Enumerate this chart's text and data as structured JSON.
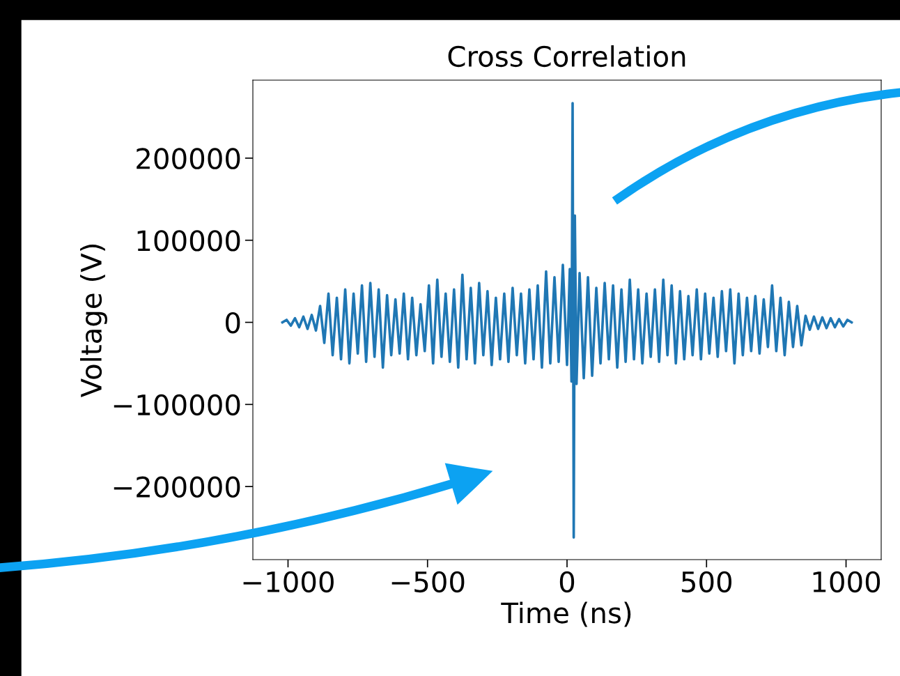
{
  "chart_data": {
    "type": "line",
    "title": "Cross Correlation",
    "xlabel": "Time (ns)",
    "ylabel": "Voltage (V)",
    "xlim": [
      -1126,
      1126
    ],
    "ylim": [
      -289000,
      295000
    ],
    "xticks": [
      {
        "value": -1000,
        "label": "−1000"
      },
      {
        "value": -500,
        "label": "−500"
      },
      0,
      500,
      1000
    ],
    "yticks": [
      {
        "value": -200000,
        "label": "−200000"
      },
      {
        "value": -100000,
        "label": "−100000"
      },
      0,
      100000,
      200000
    ],
    "grid": false,
    "series": [
      {
        "color": "#1f77b4",
        "x": [
          -1020,
          -1005,
          -990,
          -975,
          -960,
          -945,
          -930,
          -915,
          -900,
          -885,
          -870,
          -855,
          -840,
          -825,
          -810,
          -795,
          -780,
          -765,
          -750,
          -735,
          -720,
          -705,
          -690,
          -675,
          -660,
          -645,
          -630,
          -615,
          -600,
          -585,
          -570,
          -555,
          -540,
          -525,
          -510,
          -495,
          -480,
          -465,
          -450,
          -435,
          -420,
          -405,
          -390,
          -375,
          -360,
          -345,
          -330,
          -315,
          -300,
          -285,
          -270,
          -255,
          -240,
          -225,
          -210,
          -195,
          -180,
          -165,
          -150,
          -135,
          -120,
          -105,
          -90,
          -75,
          -60,
          -45,
          -30,
          -15,
          0,
          10,
          16,
          20,
          24,
          28,
          34,
          45,
          60,
          75,
          90,
          105,
          120,
          135,
          150,
          165,
          180,
          195,
          210,
          225,
          240,
          255,
          270,
          285,
          300,
          315,
          330,
          345,
          360,
          375,
          390,
          405,
          420,
          435,
          450,
          465,
          480,
          495,
          510,
          525,
          540,
          555,
          570,
          585,
          600,
          615,
          630,
          645,
          660,
          675,
          690,
          705,
          720,
          735,
          750,
          765,
          780,
          795,
          810,
          825,
          840,
          855,
          870,
          885,
          900,
          915,
          930,
          945,
          960,
          975,
          990,
          1005,
          1020
        ],
        "values": [
          0,
          3000,
          -4000,
          5000,
          -6000,
          7000,
          -8000,
          9000,
          -10000,
          20000,
          -25000,
          35000,
          -40000,
          30000,
          -45000,
          40000,
          -50000,
          35000,
          -38000,
          45000,
          -48000,
          48000,
          -42000,
          40000,
          -55000,
          33000,
          -40000,
          28000,
          -38000,
          35000,
          -45000,
          30000,
          -40000,
          22000,
          -35000,
          45000,
          -50000,
          52000,
          -42000,
          35000,
          -48000,
          40000,
          -55000,
          58000,
          -45000,
          42000,
          -50000,
          48000,
          -40000,
          38000,
          -52000,
          30000,
          -45000,
          35000,
          -48000,
          42000,
          -40000,
          35000,
          -50000,
          40000,
          -45000,
          45000,
          -55000,
          62000,
          -50000,
          55000,
          -48000,
          70000,
          -52000,
          65000,
          -72000,
          267000,
          -262000,
          130000,
          -75000,
          60000,
          -68000,
          55000,
          -65000,
          42000,
          -50000,
          48000,
          -45000,
          45000,
          -55000,
          40000,
          -48000,
          52000,
          -45000,
          40000,
          -50000,
          35000,
          -42000,
          40000,
          -48000,
          52000,
          -40000,
          45000,
          -50000,
          38000,
          -45000,
          32000,
          -40000,
          40000,
          -45000,
          35000,
          -38000,
          30000,
          -42000,
          38000,
          -35000,
          40000,
          -50000,
          35000,
          -40000,
          30000,
          -35000,
          32000,
          -38000,
          28000,
          -30000,
          45000,
          -35000,
          30000,
          -40000,
          25000,
          -30000,
          20000,
          -28000,
          8000,
          -9000,
          7000,
          -8000,
          6000,
          -7000,
          5000,
          -6000,
          4000,
          -5000,
          3000,
          0
        ]
      }
    ]
  }
}
